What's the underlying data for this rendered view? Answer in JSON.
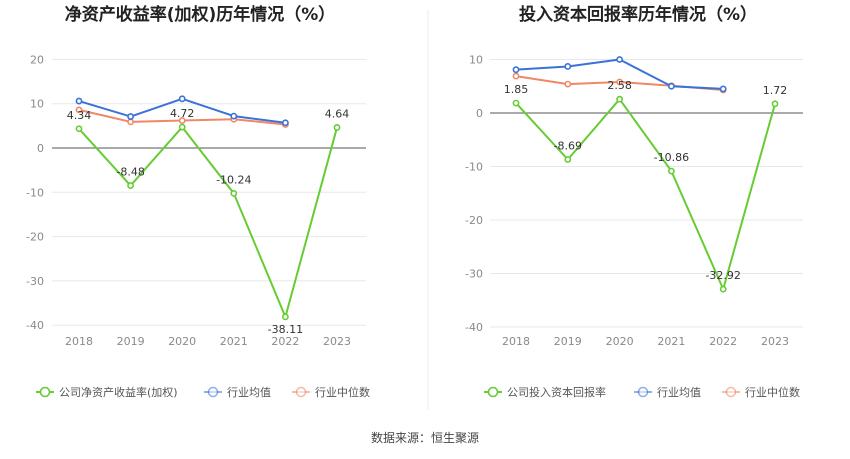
{
  "source_text": "数据来源：恒生聚源",
  "colors": {
    "company": "#66cc33",
    "avg": "#3a72d8",
    "median": "#ee8866"
  },
  "chart_data": [
    {
      "type": "line",
      "title": "净资产收益率(加权)历年情况（%）",
      "xlabel": "",
      "ylabel": "",
      "categories": [
        "2018",
        "2019",
        "2020",
        "2021",
        "2022",
        "2023"
      ],
      "ylim": [
        -40,
        20
      ],
      "yticks": [
        20,
        10,
        0,
        -10,
        -20,
        -30,
        -40
      ],
      "grid": true,
      "legend_position": "bottom",
      "series": [
        {
          "name": "公司净资产收益率(加权)",
          "color_key": "company",
          "values": [
            4.34,
            -8.48,
            4.72,
            -10.24,
            -38.11,
            4.64
          ],
          "labels": [
            "4.34",
            "-8.48",
            "4.72",
            "-10.24",
            "-38.11",
            "4.64"
          ]
        },
        {
          "name": "行业均值",
          "color_key": "avg",
          "values": [
            10.6,
            7.1,
            11.1,
            7.2,
            5.7,
            null
          ]
        },
        {
          "name": "行业中位数",
          "color_key": "median",
          "values": [
            8.6,
            5.9,
            6.2,
            6.5,
            5.3,
            null
          ]
        }
      ]
    },
    {
      "type": "line",
      "title": "投入资本回报率历年情况（%）",
      "xlabel": "",
      "ylabel": "",
      "categories": [
        "2018",
        "2019",
        "2020",
        "2021",
        "2022",
        "2023"
      ],
      "ylim": [
        -40,
        10
      ],
      "yticks": [
        10,
        0,
        -10,
        -20,
        -30,
        -40
      ],
      "grid": true,
      "legend_position": "bottom",
      "series": [
        {
          "name": "公司投入资本回报率",
          "color_key": "company",
          "values": [
            1.85,
            -8.69,
            2.58,
            -10.86,
            -32.92,
            1.72
          ],
          "labels": [
            "1.85",
            "-8.69",
            "2.58",
            "-10.86",
            "-32.92",
            "1.72"
          ]
        },
        {
          "name": "行业均值",
          "color_key": "avg",
          "values": [
            8.1,
            8.7,
            10.0,
            5.0,
            4.5,
            null
          ]
        },
        {
          "name": "行业中位数",
          "color_key": "median",
          "values": [
            6.9,
            5.4,
            5.8,
            5.1,
            4.3,
            null
          ]
        }
      ]
    }
  ]
}
